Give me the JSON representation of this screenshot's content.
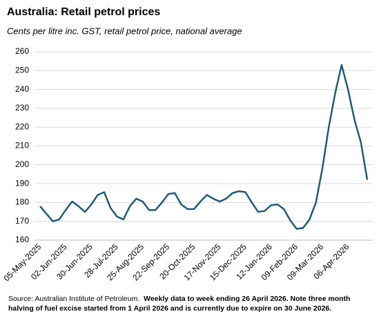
{
  "chart_data": {
    "type": "line",
    "title": "Australia: Retail petrol prices",
    "subtitle": "Cents per litre inc. GST, retail petrol price, national average",
    "categories": [
      "05-May-2025",
      null,
      null,
      null,
      "02-Jun-2025",
      null,
      null,
      null,
      "30-Jun-2025",
      null,
      null,
      null,
      "28-Jul-2025",
      null,
      null,
      null,
      "25-Aug-2025",
      null,
      null,
      null,
      "22-Sep-2025",
      null,
      null,
      null,
      "20-Oct-2025",
      null,
      null,
      null,
      "17-Nov-2025",
      null,
      null,
      null,
      "15-Dec-2025",
      null,
      null,
      null,
      "12-Jan-2026",
      null,
      null,
      null,
      "09-Feb-2026",
      null,
      null,
      null,
      "09-Mar-2026",
      null,
      null,
      null,
      "06-Apr-2026",
      null,
      null,
      null
    ],
    "values": [
      178,
      174,
      170,
      171,
      176,
      180.5,
      178,
      175,
      179,
      184,
      185.5,
      177,
      172.5,
      171,
      178,
      182,
      180.5,
      176,
      176,
      180,
      184.5,
      185,
      179,
      176.5,
      176.5,
      180.5,
      184,
      182,
      180.5,
      182,
      185,
      186,
      185.5,
      180,
      175,
      175.5,
      178.5,
      179,
      176.5,
      170.5,
      166,
      166.5,
      171,
      180,
      198,
      220,
      238,
      253,
      240,
      224,
      212,
      192
    ],
    "color": "#1d5b79",
    "ylim": [
      160,
      260
    ],
    "yticks": [
      160,
      170,
      180,
      190,
      200,
      210,
      220,
      230,
      240,
      250,
      260
    ],
    "grid": true,
    "source": "Source: Australian Institute of Petroleum.",
    "note": "Weekly data to week ending 26 April 2026. Note three month halving of fuel excise started from 1 April 2026 and  is currently due to expire on 30 June 2026."
  }
}
